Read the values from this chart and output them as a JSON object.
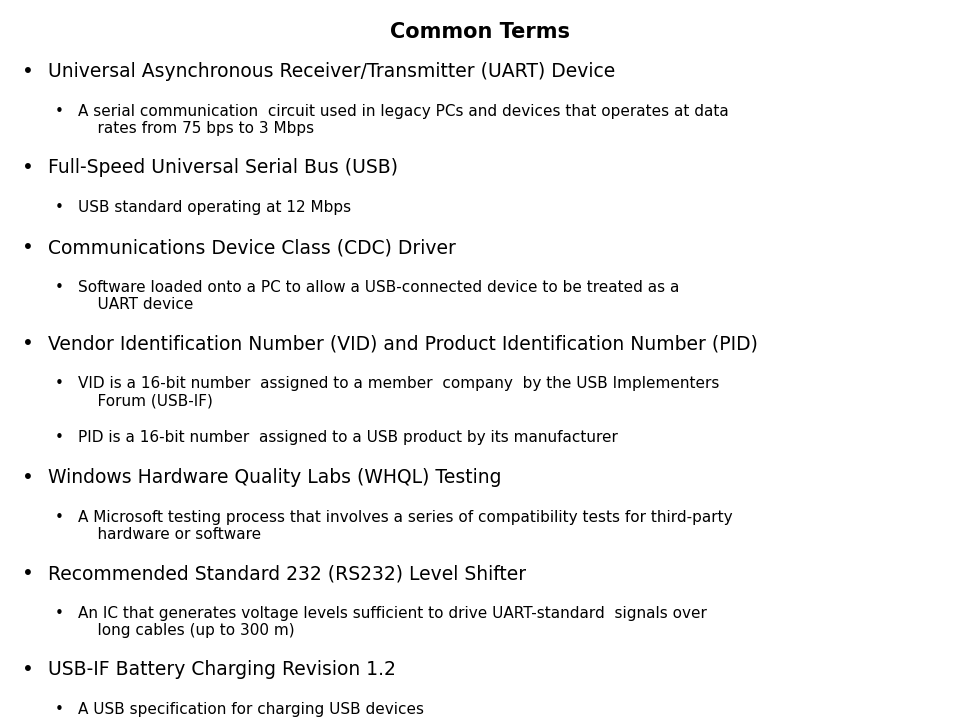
{
  "title": "Common Terms",
  "background_color": "#ffffff",
  "text_color": "#000000",
  "title_fontsize": 15,
  "title_fontweight": "bold",
  "items": [
    {
      "level": 1,
      "text": "Universal Asynchronous Receiver/Transmitter (UART) Device",
      "fontsize": 13.5,
      "lines": 1
    },
    {
      "level": 2,
      "text": "A serial communication  circuit used in legacy PCs and devices that operates at data\n    rates from 75 bps to 3 Mbps",
      "fontsize": 11,
      "lines": 2
    },
    {
      "level": 1,
      "text": "Full-Speed Universal Serial Bus (USB)",
      "fontsize": 13.5,
      "lines": 1
    },
    {
      "level": 2,
      "text": "USB standard operating at 12 Mbps",
      "fontsize": 11,
      "lines": 1
    },
    {
      "level": 1,
      "text": "Communications Device Class (CDC) Driver",
      "fontsize": 13.5,
      "lines": 1
    },
    {
      "level": 2,
      "text": "Software loaded onto a PC to allow a USB-connected device to be treated as a\n    UART device",
      "fontsize": 11,
      "lines": 2
    },
    {
      "level": 1,
      "text": "Vendor Identification Number (VID) and Product Identification Number (PID)",
      "fontsize": 13.5,
      "lines": 1
    },
    {
      "level": 2,
      "text": "VID is a 16-bit number  assigned to a member  company  by the USB Implementers\n    Forum (USB-IF)",
      "fontsize": 11,
      "lines": 2
    },
    {
      "level": 2,
      "text": "PID is a 16-bit number  assigned to a USB product by its manufacturer",
      "fontsize": 11,
      "lines": 1
    },
    {
      "level": 1,
      "text": "Windows Hardware Quality Labs (WHQL) Testing",
      "fontsize": 13.5,
      "lines": 1
    },
    {
      "level": 2,
      "text": "A Microsoft testing process that involves a series of compatibility tests for third-party\n    hardware or software",
      "fontsize": 11,
      "lines": 2
    },
    {
      "level": 1,
      "text": "Recommended Standard 232 (RS232) Level Shifter",
      "fontsize": 13.5,
      "lines": 1
    },
    {
      "level": 2,
      "text": "An IC that generates voltage levels sufficient to drive UART-standard  signals over\n    long cables (up to 300 m)",
      "fontsize": 11,
      "lines": 2
    },
    {
      "level": 1,
      "text": "USB-IF Battery Charging Revision 1.2",
      "fontsize": 13.5,
      "lines": 1
    },
    {
      "level": 2,
      "text": "A USB specification for charging USB devices",
      "fontsize": 11,
      "lines": 1
    }
  ]
}
